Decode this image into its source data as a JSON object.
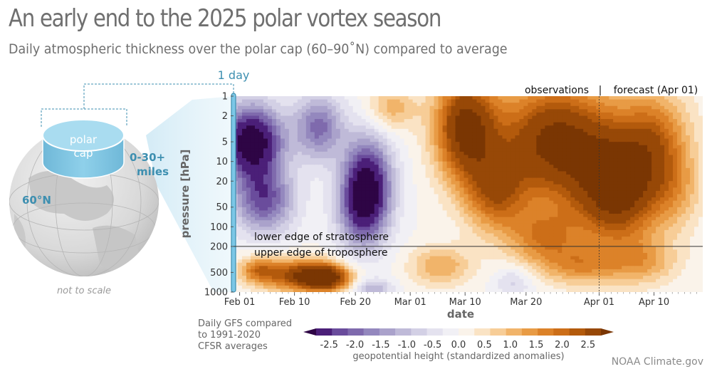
{
  "header": {
    "title": "An early end to the 2025 polar vortex season",
    "subtitle": "Daily atmospheric thickness over the polar cap (60–90˚N) compared to average"
  },
  "globe": {
    "cap_label_1": "polar",
    "cap_label_2": "cap",
    "height_label_1": "0-30+",
    "height_label_2": "miles",
    "lat_label": "60°N",
    "scale_note": "not to scale",
    "day_label": "1 day"
  },
  "annotations": {
    "observations": "observations",
    "divider": "|",
    "forecast": "forecast (Apr 01)",
    "strat": "lower edge of stratosphere",
    "trop": "upper edge of troposphere"
  },
  "source_note": [
    "Daily GFS compared",
    "to 1991-2020",
    "CFSR averages"
  ],
  "credit": "NOAA Climate.gov",
  "colors": {
    "neg3": "#3d0a5a",
    "neg2": "#5b3a8c",
    "neg1": "#9c90c6",
    "neg05": "#cfcae3",
    "zero": "#f3f3f6",
    "pos05": "#f8dcae",
    "pos1": "#efb061",
    "pos2": "#cf7a1a",
    "pos3": "#8a4006",
    "cap": "#7cc7e6",
    "accent": "#3d8fb0"
  },
  "chart_data": {
    "type": "heatmap",
    "xlabel": "date",
    "ylabel": "pressure [hPa]",
    "x_ticks": [
      "Feb 01",
      "Feb 10",
      "Feb 20",
      "Mar 01",
      "Mar 10",
      "Mar 20",
      "Apr 01",
      "Apr 10"
    ],
    "x_tick_days": [
      0,
      9,
      19,
      28,
      37,
      47,
      59,
      68
    ],
    "x_range_days": [
      -1,
      76
    ],
    "y_ticks": [
      1,
      2,
      5,
      10,
      20,
      50,
      100,
      200,
      500,
      1000
    ],
    "y_range": [
      1,
      1000
    ],
    "y_scale": "log-reversed",
    "tropopause_hPa": 200,
    "forecast_start_day": 59,
    "forecast_label": "forecast (Apr 01)",
    "colorbar": {
      "label": "geopotential height (standardized anomalies)",
      "ticks": [
        -2.5,
        -2.0,
        -1.5,
        -1.0,
        -0.5,
        0.0,
        0.5,
        1.0,
        1.5,
        2.0,
        2.5
      ],
      "tick_labels": [
        "-2.5",
        "-2.0",
        "-1.5",
        "-1.0",
        "-0.5",
        "0.0",
        "0.5",
        "1.0",
        "1.5",
        "2.0",
        "2.5"
      ],
      "levels": [
        -3.0,
        -2.5,
        -2.0,
        -1.75,
        -1.5,
        -1.25,
        -1.0,
        -0.75,
        -0.5,
        -0.25,
        0,
        0.25,
        0.5,
        0.75,
        1.0,
        1.25,
        1.5,
        1.75,
        2.0,
        2.5,
        3.0
      ],
      "extend": "both"
    },
    "anomaly_features": [
      {
        "day": 2,
        "hPa": 5,
        "value": -3.0,
        "spread_days": 5,
        "spread_decades": 0.55
      },
      {
        "day": 4,
        "hPa": 40,
        "value": -1.8,
        "spread_days": 5,
        "spread_decades": 0.5
      },
      {
        "day": 13,
        "hPa": 3,
        "value": -1.6,
        "spread_days": 4,
        "spread_decades": 0.5
      },
      {
        "day": 21,
        "hPa": 20,
        "value": -2.3,
        "spread_days": 4,
        "spread_decades": 0.7
      },
      {
        "day": 20,
        "hPa": 60,
        "value": -1.4,
        "spread_days": 4,
        "spread_decades": 0.6
      },
      {
        "day": 25,
        "hPa": 1.5,
        "value": 0.9,
        "spread_days": 4,
        "spread_decades": 0.35
      },
      {
        "day": 9,
        "hPa": 550,
        "value": 1.9,
        "spread_days": 6,
        "spread_decades": 0.25
      },
      {
        "day": 14,
        "hPa": 600,
        "value": 2.8,
        "spread_days": 4,
        "spread_decades": 0.2
      },
      {
        "day": 3,
        "hPa": 450,
        "value": 1.2,
        "spread_days": 3,
        "spread_decades": 0.2
      },
      {
        "day": 22,
        "hPa": 900,
        "value": -1.0,
        "spread_days": 3,
        "spread_decades": 0.15
      },
      {
        "day": 33,
        "hPa": 400,
        "value": 1.0,
        "spread_days": 5,
        "spread_decades": 0.3
      },
      {
        "day": 45,
        "hPa": 700,
        "value": -0.6,
        "spread_days": 3,
        "spread_decades": 0.25
      },
      {
        "day": 37,
        "hPa": 3,
        "value": 2.6,
        "spread_days": 5,
        "spread_decades": 0.8
      },
      {
        "day": 42,
        "hPa": 30,
        "value": 1.6,
        "spread_days": 5,
        "spread_decades": 0.6
      },
      {
        "day": 52,
        "hPa": 5,
        "value": 2.7,
        "spread_days": 10,
        "spread_decades": 0.9
      },
      {
        "day": 62,
        "hPa": 30,
        "value": 2.5,
        "spread_days": 7,
        "spread_decades": 0.8
      },
      {
        "day": 68,
        "hPa": 5,
        "value": 1.5,
        "spread_days": 6,
        "spread_decades": 0.8
      },
      {
        "day": 50,
        "hPa": 150,
        "value": 1.3,
        "spread_days": 6,
        "spread_decades": 0.45
      },
      {
        "day": 56,
        "hPa": 400,
        "value": 1.0,
        "spread_days": 6,
        "spread_decades": 0.3
      },
      {
        "day": 66,
        "hPa": 350,
        "value": 0.9,
        "spread_days": 6,
        "spread_decades": 0.35
      },
      {
        "day": 72,
        "hPa": 30,
        "value": 0.6,
        "spread_days": 4,
        "spread_decades": 0.6
      }
    ]
  }
}
